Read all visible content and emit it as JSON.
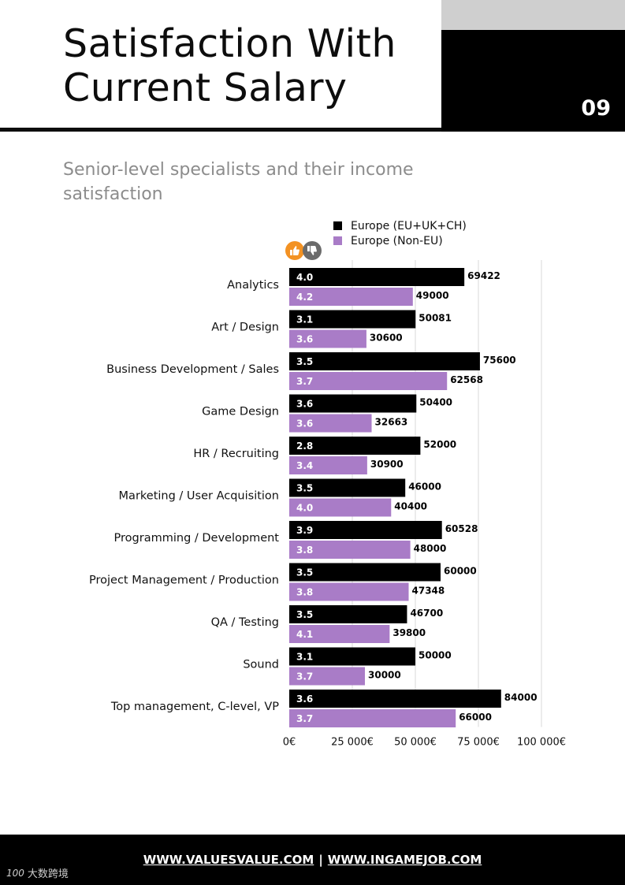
{
  "header": {
    "title": "Satisfaction With Current Salary",
    "page_number": "09"
  },
  "subtitle": "Senior-level specialists and their income satisfaction",
  "colors": {
    "europe": "#000000",
    "non_eu": "#a97cc7",
    "grid": "#d9d9d9",
    "thumb_up": "#f39223",
    "thumb_down": "#6b6b6b"
  },
  "icons": [
    "thumbs-up-icon",
    "thumbs-down-icon"
  ],
  "legend": [
    {
      "label": "Europe (EU+UK+CH)",
      "color": "#000000"
    },
    {
      "label": "Europe (Non-EU)",
      "color": "#a97cc7"
    }
  ],
  "chart_data": {
    "type": "bar",
    "orientation": "horizontal",
    "title": "Senior-level specialists and their income satisfaction",
    "xlabel": "",
    "ylabel": "",
    "xlim": [
      0,
      100000
    ],
    "x_ticks": [
      0,
      25000,
      50000,
      75000,
      100000
    ],
    "x_tick_labels": [
      "0€",
      "25 000€",
      "50 000€",
      "75 000€",
      "100 000€"
    ],
    "grid": true,
    "legend_position": "top",
    "categories": [
      "Analytics",
      "Art / Design",
      "Business Development / Sales",
      "Game Design",
      "HR / Recruiting",
      "Marketing / User Acquisition",
      "Programming / Development",
      "Project Management / Production",
      "QA / Testing",
      "Sound",
      "Top management, C-level, VP"
    ],
    "series": [
      {
        "name": "Europe (EU+UK+CH)",
        "values": [
          69422,
          50081,
          75600,
          50400,
          52000,
          46000,
          60528,
          60000,
          46700,
          50000,
          84000
        ],
        "satisfaction": [
          "4.0",
          "3.1",
          "3.5",
          "3.6",
          "2.8",
          "3.5",
          "3.9",
          "3.5",
          "3.5",
          "3.1",
          "3.6"
        ]
      },
      {
        "name": "Europe (Non-EU)",
        "values": [
          49000,
          30600,
          62568,
          32663,
          30900,
          40400,
          48000,
          47348,
          39800,
          30000,
          66000
        ],
        "satisfaction": [
          "4.2",
          "3.6",
          "3.7",
          "3.6",
          "3.4",
          "4.0",
          "3.8",
          "3.8",
          "4.1",
          "3.7",
          "3.7"
        ]
      }
    ]
  },
  "footer": {
    "link1": "WWW.VALUESVALUE.COM",
    "separator": "|",
    "link2": "WWW.INGAMEJOB.COM"
  },
  "watermark": {
    "mark": "100",
    "text": "大数跨境"
  }
}
